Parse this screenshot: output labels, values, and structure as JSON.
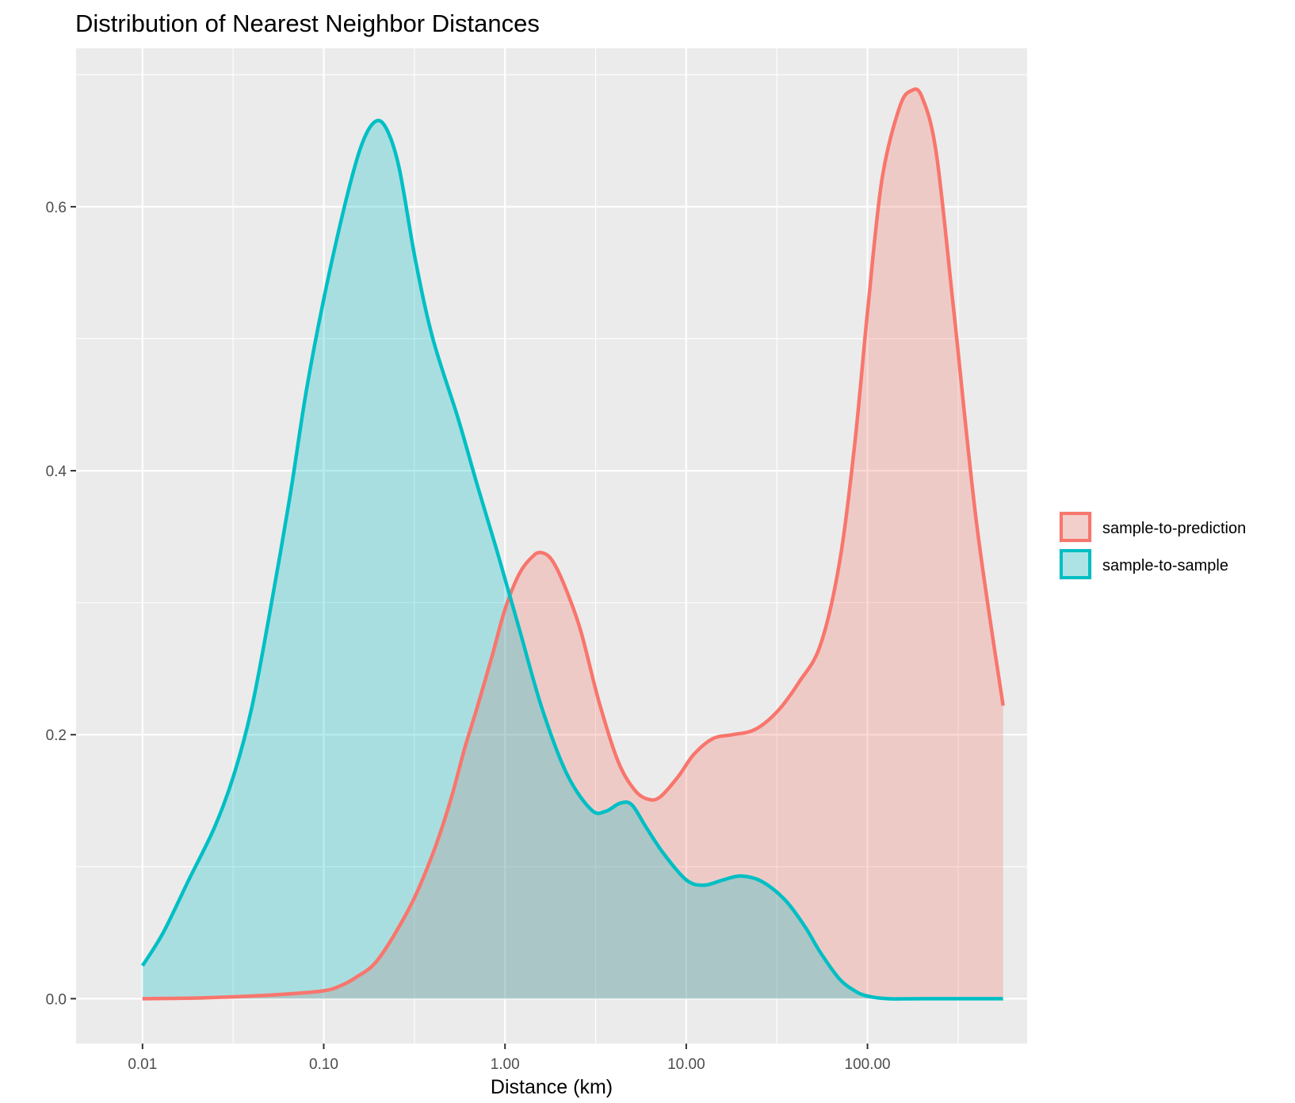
{
  "chart_data": {
    "type": "area",
    "title": "Distribution of Nearest Neighbor Distances",
    "xlabel": "Distance (km)",
    "ylabel": "",
    "x_scale": "log10",
    "xlim": [
      0.0043,
      760
    ],
    "ylim": [
      -0.034,
      0.72
    ],
    "x_ticks": [
      0.01,
      0.1,
      1,
      10,
      100
    ],
    "x_tick_labels": [
      "0.01",
      "0.10",
      "1.00",
      "10.00",
      "100.00"
    ],
    "y_ticks": [
      0,
      0.2,
      0.4,
      0.6
    ],
    "y_tick_labels": [
      "0.0",
      "0.2",
      "0.4",
      "0.6"
    ],
    "grid": true,
    "legend_position": "right",
    "series": [
      {
        "name": "sample-to-prediction",
        "color": "#F8766D",
        "fill": "#F8766D",
        "points": [
          [
            0.01,
            0.0
          ],
          [
            0.02,
            0.0005
          ],
          [
            0.04,
            0.002
          ],
          [
            0.07,
            0.004
          ],
          [
            0.1,
            0.006
          ],
          [
            0.12,
            0.009
          ],
          [
            0.15,
            0.016
          ],
          [
            0.2,
            0.03
          ],
          [
            0.3,
            0.07
          ],
          [
            0.4,
            0.11
          ],
          [
            0.5,
            0.15
          ],
          [
            0.6,
            0.19
          ],
          [
            0.7,
            0.22
          ],
          [
            0.85,
            0.26
          ],
          [
            1.0,
            0.295
          ],
          [
            1.2,
            0.322
          ],
          [
            1.42,
            0.335
          ],
          [
            1.58,
            0.338
          ],
          [
            1.8,
            0.333
          ],
          [
            2.1,
            0.315
          ],
          [
            2.6,
            0.28
          ],
          [
            3.3,
            0.225
          ],
          [
            4.2,
            0.18
          ],
          [
            5.2,
            0.158
          ],
          [
            6.2,
            0.151
          ],
          [
            7.2,
            0.153
          ],
          [
            9.0,
            0.168
          ],
          [
            11.0,
            0.185
          ],
          [
            14.0,
            0.197
          ],
          [
            18.0,
            0.2
          ],
          [
            24.0,
            0.204
          ],
          [
            32.0,
            0.218
          ],
          [
            42.0,
            0.24
          ],
          [
            55.0,
            0.268
          ],
          [
            70.0,
            0.33
          ],
          [
            85.0,
            0.42
          ],
          [
            100.0,
            0.52
          ],
          [
            120.0,
            0.62
          ],
          [
            150.0,
            0.675
          ],
          [
            175.0,
            0.688
          ],
          [
            200.0,
            0.683
          ],
          [
            240.0,
            0.64
          ],
          [
            300.0,
            0.52
          ],
          [
            400.0,
            0.36
          ],
          [
            560.0,
            0.222
          ]
        ]
      },
      {
        "name": "sample-to-sample",
        "color": "#00BFC4",
        "fill": "#00BFC4",
        "points": [
          [
            0.01,
            0.025
          ],
          [
            0.013,
            0.05
          ],
          [
            0.018,
            0.09
          ],
          [
            0.025,
            0.13
          ],
          [
            0.032,
            0.17
          ],
          [
            0.04,
            0.22
          ],
          [
            0.05,
            0.29
          ],
          [
            0.065,
            0.38
          ],
          [
            0.08,
            0.46
          ],
          [
            0.1,
            0.53
          ],
          [
            0.13,
            0.6
          ],
          [
            0.16,
            0.645
          ],
          [
            0.19,
            0.664
          ],
          [
            0.22,
            0.66
          ],
          [
            0.26,
            0.63
          ],
          [
            0.32,
            0.56
          ],
          [
            0.4,
            0.5
          ],
          [
            0.55,
            0.44
          ],
          [
            0.7,
            0.39
          ],
          [
            0.9,
            0.34
          ],
          [
            1.2,
            0.28
          ],
          [
            1.6,
            0.22
          ],
          [
            2.2,
            0.17
          ],
          [
            3.0,
            0.143
          ],
          [
            3.6,
            0.142
          ],
          [
            4.3,
            0.148
          ],
          [
            5.0,
            0.147
          ],
          [
            6.0,
            0.13
          ],
          [
            7.5,
            0.11
          ],
          [
            10.0,
            0.09
          ],
          [
            12.5,
            0.086
          ],
          [
            16.0,
            0.09
          ],
          [
            20.0,
            0.093
          ],
          [
            26.0,
            0.089
          ],
          [
            35.0,
            0.075
          ],
          [
            45.0,
            0.055
          ],
          [
            55.0,
            0.035
          ],
          [
            70.0,
            0.015
          ],
          [
            85.0,
            0.006
          ],
          [
            100.0,
            0.002
          ],
          [
            130.0,
            0.0
          ],
          [
            200.0,
            0.0
          ],
          [
            560.0,
            0.0
          ]
        ]
      }
    ]
  }
}
